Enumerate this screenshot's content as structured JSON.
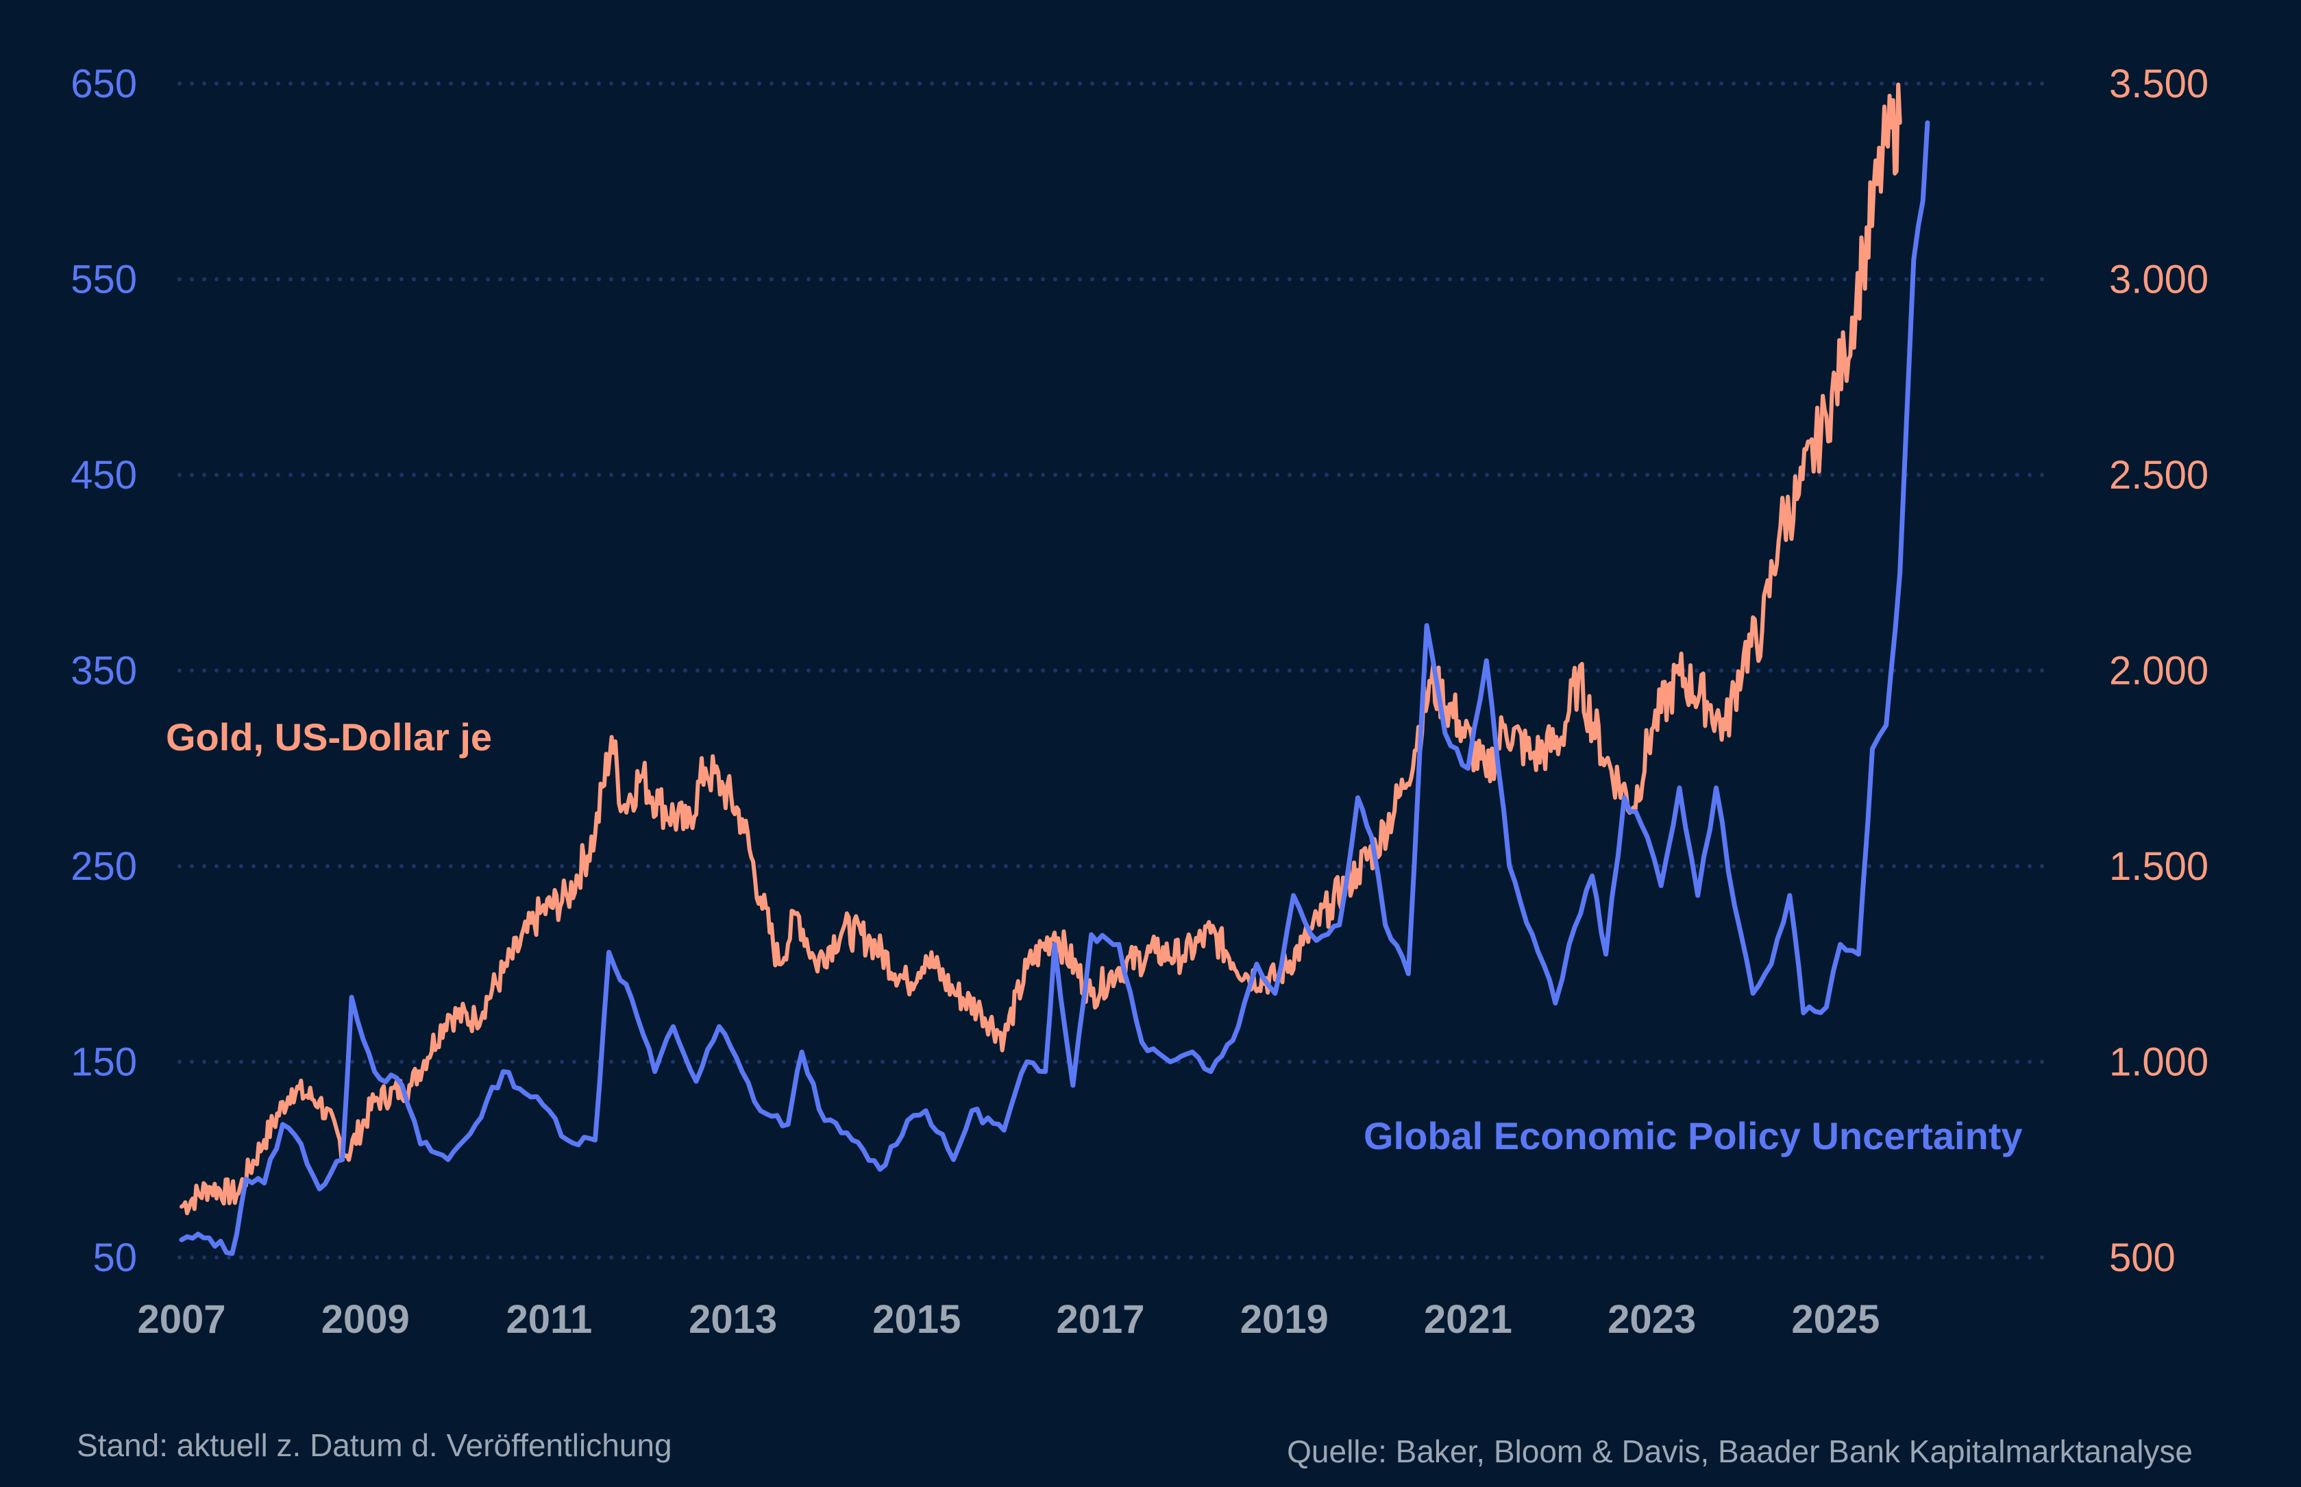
{
  "chart_data": {
    "type": "line",
    "title": "",
    "x_ticks": [
      "2007",
      "2009",
      "2011",
      "2013",
      "2015",
      "2017",
      "2019",
      "2021",
      "2023",
      "2025"
    ],
    "xlim": [
      2007,
      2026.5
    ],
    "y_left": {
      "ticks": [
        "650",
        "550",
        "450",
        "350",
        "250",
        "150",
        "50"
      ],
      "tick_values": [
        650,
        550,
        450,
        350,
        250,
        150,
        50
      ],
      "range": [
        50,
        650
      ]
    },
    "y_right": {
      "ticks": [
        "3.500",
        "3.000",
        "2.500",
        "2.000",
        "1.500",
        "1.000",
        "500"
      ],
      "tick_values": [
        3500,
        3000,
        2500,
        2000,
        1500,
        1000,
        500
      ],
      "range": [
        500,
        3500
      ]
    },
    "grid": true,
    "series": [
      {
        "name": "Gold, US-Dollar je",
        "axis": "right",
        "color": "#ff9c80",
        "points": [
          [
            2007.0,
            630
          ],
          [
            2007.3,
            680
          ],
          [
            2007.6,
            660
          ],
          [
            2007.9,
            800
          ],
          [
            2008.2,
            930
          ],
          [
            2008.5,
            900
          ],
          [
            2008.8,
            760
          ],
          [
            2009.1,
            900
          ],
          [
            2009.5,
            940
          ],
          [
            2009.9,
            1120
          ],
          [
            2010.2,
            1110
          ],
          [
            2010.5,
            1230
          ],
          [
            2010.9,
            1380
          ],
          [
            2011.2,
            1420
          ],
          [
            2011.5,
            1580
          ],
          [
            2011.68,
            1830
          ],
          [
            2011.8,
            1650
          ],
          [
            2012.0,
            1730
          ],
          [
            2012.2,
            1660
          ],
          [
            2012.5,
            1600
          ],
          [
            2012.7,
            1750
          ],
          [
            2012.9,
            1700
          ],
          [
            2013.1,
            1620
          ],
          [
            2013.3,
            1420
          ],
          [
            2013.5,
            1250
          ],
          [
            2013.7,
            1380
          ],
          [
            2013.9,
            1250
          ],
          [
            2014.2,
            1340
          ],
          [
            2014.5,
            1310
          ],
          [
            2014.9,
            1200
          ],
          [
            2015.1,
            1270
          ],
          [
            2015.4,
            1180
          ],
          [
            2015.7,
            1130
          ],
          [
            2015.95,
            1060
          ],
          [
            2016.2,
            1240
          ],
          [
            2016.5,
            1330
          ],
          [
            2016.9,
            1170
          ],
          [
            2017.2,
            1240
          ],
          [
            2017.6,
            1280
          ],
          [
            2017.9,
            1270
          ],
          [
            2018.2,
            1330
          ],
          [
            2018.6,
            1220
          ],
          [
            2018.9,
            1210
          ],
          [
            2019.2,
            1300
          ],
          [
            2019.5,
            1400
          ],
          [
            2019.8,
            1490
          ],
          [
            2020.0,
            1550
          ],
          [
            2020.3,
            1700
          ],
          [
            2020.6,
            1970
          ],
          [
            2020.9,
            1870
          ],
          [
            2021.2,
            1730
          ],
          [
            2021.4,
            1860
          ],
          [
            2021.7,
            1780
          ],
          [
            2022.0,
            1820
          ],
          [
            2022.2,
            1980
          ],
          [
            2022.5,
            1770
          ],
          [
            2022.8,
            1650
          ],
          [
            2023.0,
            1850
          ],
          [
            2023.3,
            1990
          ],
          [
            2023.6,
            1920
          ],
          [
            2023.8,
            1850
          ],
          [
            2024.0,
            2040
          ],
          [
            2024.2,
            2100
          ],
          [
            2024.4,
            2370
          ],
          [
            2024.6,
            2450
          ],
          [
            2024.9,
            2650
          ],
          [
            2025.1,
            2800
          ],
          [
            2025.3,
            3050
          ],
          [
            2025.55,
            3350
          ],
          [
            2025.7,
            3400
          ]
        ]
      },
      {
        "name": "Global Economic Policy Uncertainty",
        "axis": "left",
        "color": "#5b79f5",
        "points": [
          [
            2007.0,
            59
          ],
          [
            2007.3,
            60
          ],
          [
            2007.55,
            52
          ],
          [
            2007.7,
            90
          ],
          [
            2007.9,
            88
          ],
          [
            2008.1,
            118
          ],
          [
            2008.3,
            108
          ],
          [
            2008.5,
            85
          ],
          [
            2008.75,
            100
          ],
          [
            2008.85,
            183
          ],
          [
            2009.1,
            145
          ],
          [
            2009.4,
            138
          ],
          [
            2009.6,
            108
          ],
          [
            2009.9,
            100
          ],
          [
            2010.2,
            118
          ],
          [
            2010.5,
            145
          ],
          [
            2010.8,
            132
          ],
          [
            2011.0,
            125
          ],
          [
            2011.2,
            110
          ],
          [
            2011.5,
            110
          ],
          [
            2011.65,
            206
          ],
          [
            2011.9,
            182
          ],
          [
            2012.15,
            145
          ],
          [
            2012.35,
            168
          ],
          [
            2012.6,
            140
          ],
          [
            2012.85,
            168
          ],
          [
            2013.1,
            145
          ],
          [
            2013.3,
            125
          ],
          [
            2013.6,
            118
          ],
          [
            2013.75,
            155
          ],
          [
            2014.0,
            120
          ],
          [
            2014.3,
            110
          ],
          [
            2014.6,
            95
          ],
          [
            2014.9,
            120
          ],
          [
            2015.1,
            125
          ],
          [
            2015.4,
            100
          ],
          [
            2015.6,
            125
          ],
          [
            2015.95,
            115
          ],
          [
            2016.2,
            150
          ],
          [
            2016.4,
            145
          ],
          [
            2016.5,
            210
          ],
          [
            2016.7,
            138
          ],
          [
            2016.9,
            215
          ],
          [
            2017.2,
            210
          ],
          [
            2017.45,
            160
          ],
          [
            2017.7,
            152
          ],
          [
            2018.0,
            155
          ],
          [
            2018.2,
            145
          ],
          [
            2018.5,
            168
          ],
          [
            2018.7,
            200
          ],
          [
            2018.9,
            185
          ],
          [
            2019.1,
            235
          ],
          [
            2019.35,
            212
          ],
          [
            2019.6,
            220
          ],
          [
            2019.8,
            285
          ],
          [
            2019.95,
            265
          ],
          [
            2020.1,
            220
          ],
          [
            2020.35,
            195
          ],
          [
            2020.55,
            373
          ],
          [
            2020.75,
            318
          ],
          [
            2021.0,
            300
          ],
          [
            2021.2,
            355
          ],
          [
            2021.45,
            250
          ],
          [
            2021.7,
            215
          ],
          [
            2021.95,
            180
          ],
          [
            2022.1,
            210
          ],
          [
            2022.35,
            245
          ],
          [
            2022.5,
            205
          ],
          [
            2022.7,
            285
          ],
          [
            2022.95,
            265
          ],
          [
            2023.1,
            240
          ],
          [
            2023.3,
            290
          ],
          [
            2023.5,
            235
          ],
          [
            2023.7,
            290
          ],
          [
            2023.9,
            230
          ],
          [
            2024.1,
            185
          ],
          [
            2024.3,
            200
          ],
          [
            2024.5,
            235
          ],
          [
            2024.65,
            175
          ],
          [
            2024.9,
            178
          ],
          [
            2025.05,
            210
          ],
          [
            2025.25,
            205
          ],
          [
            2025.4,
            310
          ],
          [
            2025.55,
            322
          ],
          [
            2025.7,
            400
          ],
          [
            2025.85,
            560
          ],
          [
            2025.95,
            590
          ],
          [
            2026.0,
            630
          ]
        ]
      }
    ],
    "series_labels": {
      "gold": "Gold, US-Dollar je",
      "epu": "Global Economic Policy Uncertainty"
    }
  },
  "footer": {
    "left": "Stand: aktuell z. Datum d. Veröffentlichung",
    "right": "Quelle: Baker, Bloom & Davis, Baader Bank Kapitalmarktanalyse"
  },
  "colors": {
    "background": "#041930",
    "gold": "#ff9c80",
    "epu": "#5b79f5",
    "axis_text": "#9da7b4",
    "grid": "#1d3463"
  }
}
